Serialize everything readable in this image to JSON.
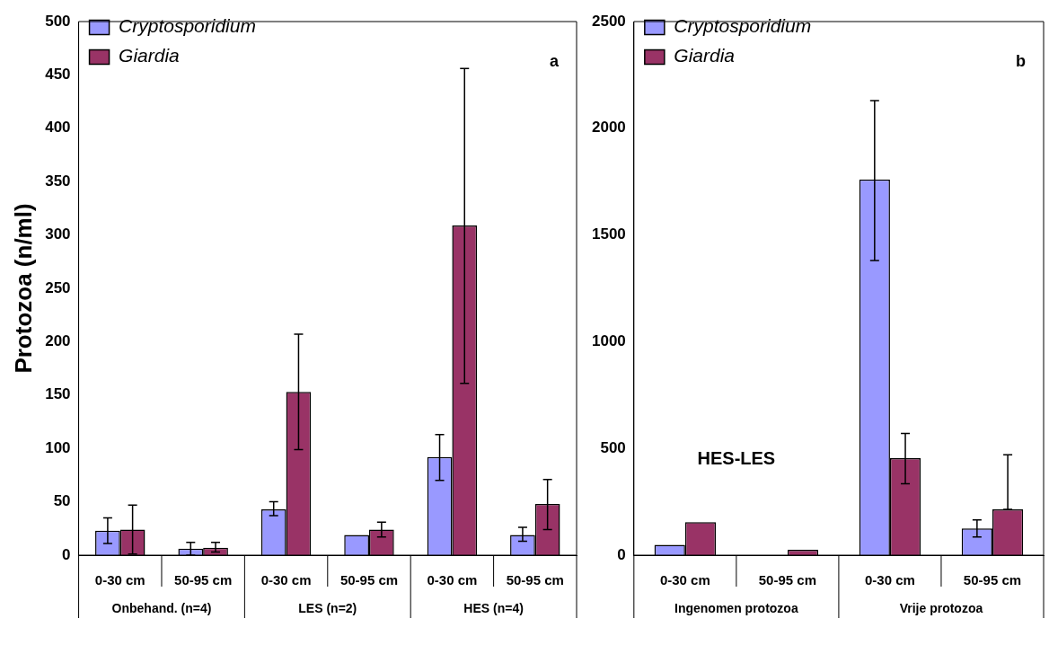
{
  "chart_data": [
    {
      "type": "bar",
      "title": "a",
      "ylabel": "Protozoa (n/ml)",
      "categories": [
        "0-30 cm",
        "50-95 cm",
        "0-30 cm",
        "50-95 cm",
        "0-30 cm",
        "50-95 cm"
      ],
      "series": [
        {
          "name": "Cryptosporidium",
          "color": "#9999ff",
          "values": [
            23,
            6,
            43,
            19,
            92,
            19
          ],
          "errors": [
            [
              11,
              35
            ],
            [
              0,
              12
            ],
            [
              37,
              50
            ],
            null,
            [
              70,
              113
            ],
            [
              13,
              26
            ]
          ]
        },
        {
          "name": "Giardia",
          "color": "#993366",
          "values": [
            24,
            7,
            153,
            24,
            309,
            48
          ],
          "errors": [
            [
              1,
              47
            ],
            [
              3,
              12
            ],
            [
              99,
              207
            ],
            [
              17,
              31
            ],
            [
              161,
              456
            ],
            [
              24,
              71
            ]
          ]
        }
      ],
      "ylim": [
        0,
        500
      ],
      "yticks": [
        0,
        50,
        100,
        150,
        200,
        250,
        300,
        350,
        400,
        450,
        500
      ],
      "grid": false,
      "legend": "top left",
      "annotations": [
        "Onbehand. (n=4)",
        "LES (n=2)",
        "HES (n=4)"
      ]
    },
    {
      "type": "bar",
      "title": "b",
      "categories": [
        "0-30 cm",
        "50-95 cm",
        "0-30 cm",
        "50-95 cm"
      ],
      "series": [
        {
          "name": "Cryptosporidium",
          "color": "#9999ff",
          "values": [
            48,
            0,
            1760,
            125
          ],
          "errors": [
            null,
            null,
            [
              1380,
              2130
            ],
            [
              85,
              165
            ]
          ]
        },
        {
          "name": "Giardia",
          "color": "#993366",
          "values": [
            155,
            25,
            455,
            215
          ],
          "errors": [
            null,
            null,
            [
              335,
              570
            ],
            [
              215,
              470
            ]
          ]
        }
      ],
      "ylim": [
        0,
        2500
      ],
      "yticks": [
        0,
        500,
        1000,
        1500,
        2000,
        2500
      ],
      "grid": false,
      "legend": "top left",
      "annotations": [
        "Ingenomen protozoa",
        "Vrije protozoa",
        "HES-LES"
      ]
    }
  ]
}
